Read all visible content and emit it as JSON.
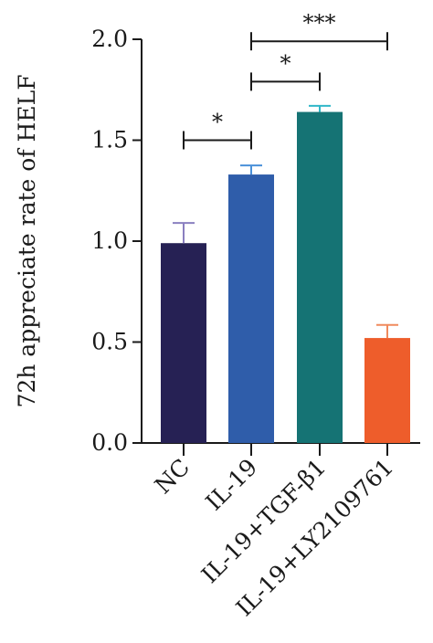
{
  "chart_data": {
    "type": "bar",
    "title": "",
    "xlabel": "",
    "ylabel": "72h appreciate rate of HELF",
    "ylim": [
      0,
      2.0
    ],
    "yticks": [
      "0.0",
      "0.5",
      "1.0",
      "1.5",
      "2.0"
    ],
    "categories": [
      "NC",
      "IL-19",
      "IL-19+TGF-β1",
      "IL-19+LY2109761"
    ],
    "values": [
      0.99,
      1.33,
      1.64,
      0.52
    ],
    "error": [
      0.1,
      0.045,
      0.03,
      0.065
    ],
    "colors": [
      "#262154",
      "#2f5daa",
      "#157374",
      "#ee5d2b"
    ],
    "error_colors": [
      "#8a7fc0",
      "#4a90d9",
      "#31b7c9",
      "#f08a5d"
    ],
    "significance": [
      {
        "from": 0,
        "to": 1,
        "y": 1.5,
        "label": "*"
      },
      {
        "from": 1,
        "to": 2,
        "y": 1.79,
        "label": "*"
      },
      {
        "from": 1,
        "to": 3,
        "y": 1.99,
        "label": "***"
      }
    ],
    "grid": false,
    "legend": "none"
  }
}
